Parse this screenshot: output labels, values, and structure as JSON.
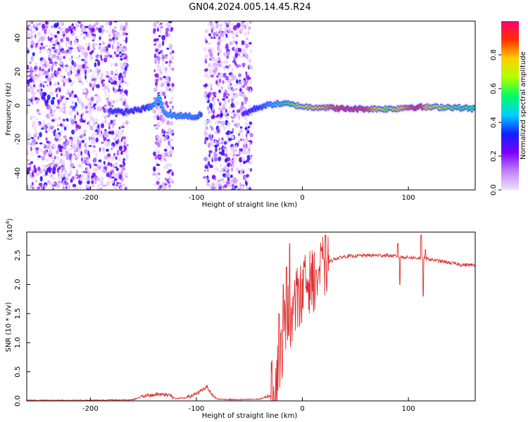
{
  "title": "GN04.2024.005.14.45.R24",
  "chart_data": [
    {
      "type": "heatmap",
      "xlabel": "Height of straight line (km)",
      "ylabel": "Frequency (Hz)",
      "xlim": [
        -260,
        163
      ],
      "ylim": [
        -50,
        50
      ],
      "xticks": [
        -200,
        -100,
        0,
        100
      ],
      "yticks": [
        -40,
        -20,
        0,
        20,
        40
      ],
      "colorbar": {
        "label": "Normalized spectral amplitude",
        "range": [
          0,
          1
        ],
        "ticks": [
          0.0,
          0.2,
          0.4,
          0.6,
          0.8
        ],
        "colormap": [
          "#f0e0ff",
          "#c080ff",
          "#7a00ff",
          "#1020ff",
          "#00d0ff",
          "#00ff60",
          "#b0ff00",
          "#ffd000",
          "#ff3000",
          "#ff0070"
        ]
      },
      "ridge": [
        [
          -180,
          -3
        ],
        [
          -170,
          -4
        ],
        [
          -160,
          -3
        ],
        [
          -150,
          -2
        ],
        [
          -140,
          0
        ],
        [
          -135,
          5
        ],
        [
          -130,
          -5
        ],
        [
          -120,
          -6
        ],
        [
          -110,
          -6
        ],
        [
          -100,
          -7
        ],
        [
          -95,
          -5
        ],
        [
          -55,
          -5
        ],
        [
          -45,
          -2
        ],
        [
          -35,
          0
        ],
        [
          -25,
          1
        ],
        [
          -15,
          1
        ],
        [
          -5,
          0
        ],
        [
          5,
          -1
        ],
        [
          20,
          -1
        ],
        [
          40,
          -2
        ],
        [
          60,
          -2
        ],
        [
          75,
          -2
        ],
        [
          85,
          -2
        ],
        [
          100,
          -1
        ],
        [
          110,
          -1
        ],
        [
          120,
          -1
        ],
        [
          140,
          -1
        ],
        [
          163,
          -2
        ]
      ],
      "ridge_amplitude": [
        [
          -180,
          0.3
        ],
        [
          -150,
          0.3
        ],
        [
          -138,
          0.45
        ],
        [
          -100,
          0.4
        ],
        [
          -60,
          0.2
        ],
        [
          -40,
          0.35
        ],
        [
          -20,
          0.5
        ],
        [
          0,
          0.7
        ],
        [
          20,
          0.8
        ],
        [
          40,
          0.95
        ],
        [
          60,
          0.9
        ],
        [
          80,
          0.6
        ],
        [
          100,
          0.85
        ],
        [
          110,
          0.95
        ],
        [
          120,
          0.7
        ],
        [
          140,
          0.6
        ],
        [
          163,
          0.55
        ]
      ],
      "noise_bands": [
        [
          -260,
          -165
        ],
        [
          -140,
          -122
        ],
        [
          -92,
          -48
        ]
      ]
    },
    {
      "type": "line",
      "xlabel": "Height of straight line (km)",
      "ylabel": "SNR (10 * v/v)",
      "multiplier": "(x10",
      "multiplier_exp": "4",
      "multiplier_close": ")",
      "xlim": [
        -260,
        163
      ],
      "ylim": [
        0,
        2.9
      ],
      "xticks": [
        -200,
        -100,
        0,
        100
      ],
      "yticks": [
        "0.0",
        "0.5",
        "1.0",
        "1.5",
        "2.0",
        "2.5"
      ],
      "line_color": "#e03030",
      "envelope": [
        [
          -260,
          0.01
        ],
        [
          -200,
          0.01
        ],
        [
          -160,
          0.02
        ],
        [
          -150,
          0.08
        ],
        [
          -140,
          0.1
        ],
        [
          -135,
          0.12
        ],
        [
          -125,
          0.1
        ],
        [
          -120,
          0.04
        ],
        [
          -110,
          0.05
        ],
        [
          -100,
          0.12
        ],
        [
          -90,
          0.25
        ],
        [
          -85,
          0.1
        ],
        [
          -80,
          0.03
        ],
        [
          -60,
          0.02
        ],
        [
          -40,
          0.03
        ],
        [
          -30,
          0.1
        ],
        [
          -25,
          0.35
        ],
        [
          -20,
          0.8
        ],
        [
          -15,
          1.5
        ],
        [
          -10,
          1.45
        ],
        [
          -5,
          1.75
        ],
        [
          0,
          1.9
        ],
        [
          5,
          2.05
        ],
        [
          10,
          2.05
        ],
        [
          15,
          2.2
        ],
        [
          20,
          2.3
        ],
        [
          25,
          2.38
        ],
        [
          30,
          2.44
        ],
        [
          40,
          2.48
        ],
        [
          60,
          2.5
        ],
        [
          80,
          2.5
        ],
        [
          90,
          2.48
        ],
        [
          95,
          2.47
        ],
        [
          105,
          2.46
        ],
        [
          115,
          2.45
        ],
        [
          130,
          2.4
        ],
        [
          140,
          2.37
        ],
        [
          150,
          2.34
        ],
        [
          163,
          2.33
        ]
      ],
      "spikes": [
        [
          -22,
          1.5
        ],
        [
          -18,
          2.0
        ],
        [
          -15,
          2.3
        ],
        [
          -12,
          2.7
        ],
        [
          -8,
          1.8
        ],
        [
          -4,
          2.1
        ],
        [
          2,
          2.3
        ],
        [
          8,
          2.2
        ],
        [
          13,
          2.25
        ],
        [
          20,
          2.45
        ],
        [
          90,
          2.7
        ],
        [
          92,
          2.0
        ],
        [
          112,
          2.85
        ],
        [
          114,
          1.8
        ],
        [
          116,
          2.6
        ]
      ]
    }
  ]
}
